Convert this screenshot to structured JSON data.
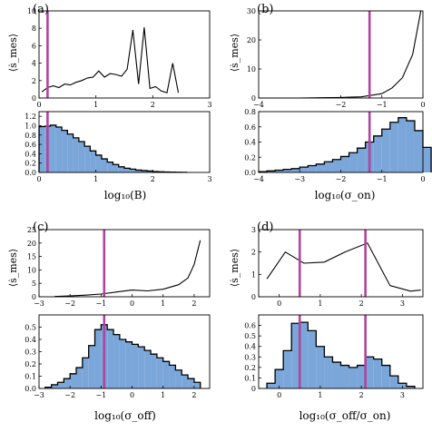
{
  "colors": {
    "hist_fill": "#7aa6d9",
    "marker": "#b0449e",
    "line": "#000000"
  },
  "chart_data": [
    {
      "panel": "(a)",
      "type": "line",
      "ylabel": "⟨ṡ_mes⟩",
      "xlim": [
        0,
        3
      ],
      "ylim": [
        0,
        10
      ],
      "xticks": [
        "0",
        "1",
        "2",
        "3"
      ],
      "yticks": [
        "0",
        "2",
        "4",
        "6",
        "8",
        "10"
      ],
      "marker_x": 0.15,
      "x": [
        0.05,
        0.15,
        0.25,
        0.35,
        0.45,
        0.55,
        0.65,
        0.75,
        0.85,
        0.95,
        1.05,
        1.15,
        1.25,
        1.35,
        1.45,
        1.55,
        1.65,
        1.75,
        1.85,
        1.95,
        2.05,
        2.15,
        2.25,
        2.35,
        2.45
      ],
      "y": [
        0.7,
        1.2,
        1.4,
        1.2,
        1.6,
        1.5,
        1.8,
        2.0,
        2.3,
        2.4,
        3.1,
        2.4,
        2.8,
        2.7,
        2.5,
        3.3,
        7.8,
        1.6,
        8.1,
        1.1,
        1.3,
        0.8,
        0.6,
        4.0,
        0.6
      ]
    },
    {
      "panel": "(a)",
      "type": "bar",
      "xlabel": "log₁₀(B)",
      "xlim": [
        0,
        3
      ],
      "ylim": [
        0,
        1.3
      ],
      "xticks": [
        "0",
        "1",
        "2",
        "3"
      ],
      "yticks": [
        "0.0",
        "0.2",
        "0.4",
        "0.6",
        "0.8",
        "1.0",
        "1.2"
      ],
      "marker_x": 0.15,
      "bin_start": 0,
      "bin_width": 0.1,
      "values": [
        0.98,
        0.99,
        1.01,
        0.97,
        0.9,
        0.82,
        0.74,
        0.66,
        0.56,
        0.46,
        0.37,
        0.29,
        0.22,
        0.17,
        0.12,
        0.09,
        0.07,
        0.05,
        0.04,
        0.03,
        0.02,
        0.015,
        0.01,
        0.008,
        0.005,
        0.003
      ]
    },
    {
      "panel": "(b)",
      "type": "line",
      "ylabel": "⟨ṡ_mes⟩",
      "xlim": [
        -4,
        0
      ],
      "ylim": [
        0,
        30
      ],
      "xticks": [
        "−4",
        "−2",
        "−1",
        "0"
      ],
      "xtick_values": [
        -4,
        -2,
        -1,
        0
      ],
      "yticks": [
        "0",
        "10",
        "20",
        "30"
      ],
      "marker_x": -1.3,
      "x": [
        -4.0,
        -3.5,
        -3.0,
        -2.5,
        -2.0,
        -1.5,
        -1.0,
        -0.75,
        -0.5,
        -0.25,
        -0.05
      ],
      "y": [
        0,
        0,
        0,
        0.1,
        0.2,
        0.4,
        1.5,
        3.5,
        7,
        15,
        30
      ]
    },
    {
      "panel": "(b)",
      "type": "bar",
      "xlabel": "log₁₀(σ_on)",
      "xlim": [
        -4,
        0
      ],
      "ylim": [
        0,
        0.8
      ],
      "xticks": [
        "−4",
        "−3",
        "−2",
        "−1",
        "0"
      ],
      "yticks": [
        "0.0",
        "0.2",
        "0.4",
        "0.6",
        "0.8"
      ],
      "marker_x": -1.3,
      "bin_start": -4,
      "bin_width": 0.2,
      "values": [
        0.01,
        0.02,
        0.03,
        0.04,
        0.05,
        0.07,
        0.09,
        0.11,
        0.14,
        0.17,
        0.21,
        0.26,
        0.32,
        0.4,
        0.48,
        0.57,
        0.66,
        0.72,
        0.68,
        0.55,
        0.33
      ]
    },
    {
      "panel": "(c)",
      "type": "line",
      "ylabel": "⟨ṡ_mes⟩",
      "xlim": [
        -3,
        2.5
      ],
      "ylim": [
        0,
        25
      ],
      "xticks": [
        "−3",
        "−2",
        "−1",
        "0",
        "1",
        "2"
      ],
      "yticks": [
        "0",
        "5",
        "10",
        "15",
        "20",
        "25"
      ],
      "marker_x": -0.9,
      "x": [
        -2.5,
        -2.0,
        -1.5,
        -1.0,
        -0.5,
        0.0,
        0.5,
        1.0,
        1.5,
        1.8,
        2.0,
        2.2
      ],
      "y": [
        0.1,
        0.3,
        0.6,
        1.0,
        1.8,
        2.5,
        2.2,
        2.8,
        4.5,
        7.0,
        12.0,
        21.0
      ]
    },
    {
      "panel": "(c)",
      "type": "bar",
      "xlabel": "log₁₀(σ_off)",
      "xlim": [
        -3,
        2.5
      ],
      "ylim": [
        0,
        0.6
      ],
      "xticks": [
        "−3",
        "−2",
        "−1",
        "0",
        "1",
        "2"
      ],
      "yticks": [
        "0.0",
        "0.1",
        "0.2",
        "0.3",
        "0.4",
        "0.5"
      ],
      "marker_x": -0.9,
      "bin_start": -2.8,
      "bin_width": 0.2,
      "values": [
        0.01,
        0.03,
        0.05,
        0.08,
        0.12,
        0.17,
        0.25,
        0.35,
        0.48,
        0.52,
        0.48,
        0.44,
        0.4,
        0.38,
        0.36,
        0.34,
        0.31,
        0.28,
        0.25,
        0.22,
        0.19,
        0.15,
        0.11,
        0.08,
        0.05
      ]
    },
    {
      "panel": "(d)",
      "type": "line",
      "ylabel": "⟨ṡ_mes⟩",
      "xlim": [
        -0.5,
        3.5
      ],
      "ylim": [
        0,
        3
      ],
      "xticks": [
        "0",
        "1",
        "2",
        "3"
      ],
      "yticks": [
        "0",
        "1",
        "2",
        "3"
      ],
      "marker_x": [
        0.5,
        2.1
      ],
      "x": [
        -0.3,
        0.15,
        0.6,
        1.1,
        1.6,
        2.15,
        2.7,
        3.2,
        3.45
      ],
      "y": [
        0.8,
        2.0,
        1.5,
        1.55,
        2.0,
        2.4,
        0.5,
        0.25,
        0.3
      ]
    },
    {
      "panel": "(d)",
      "type": "bar",
      "xlabel": "log₁₀(σ_off/σ_on)",
      "xlim": [
        -0.5,
        3.5
      ],
      "ylim": [
        0,
        0.7
      ],
      "xticks": [
        "0",
        "1",
        "2",
        "3"
      ],
      "yticks": [
        "0",
        "0.1",
        "0.2",
        "0.3",
        "0.4",
        "0.5",
        "0.6"
      ],
      "marker_x": [
        0.5,
        2.1
      ],
      "bin_start": -0.3,
      "bin_width": 0.2,
      "values": [
        0.05,
        0.18,
        0.36,
        0.62,
        0.63,
        0.55,
        0.4,
        0.3,
        0.25,
        0.22,
        0.2,
        0.22,
        0.3,
        0.28,
        0.22,
        0.12,
        0.05,
        0.02
      ]
    }
  ]
}
